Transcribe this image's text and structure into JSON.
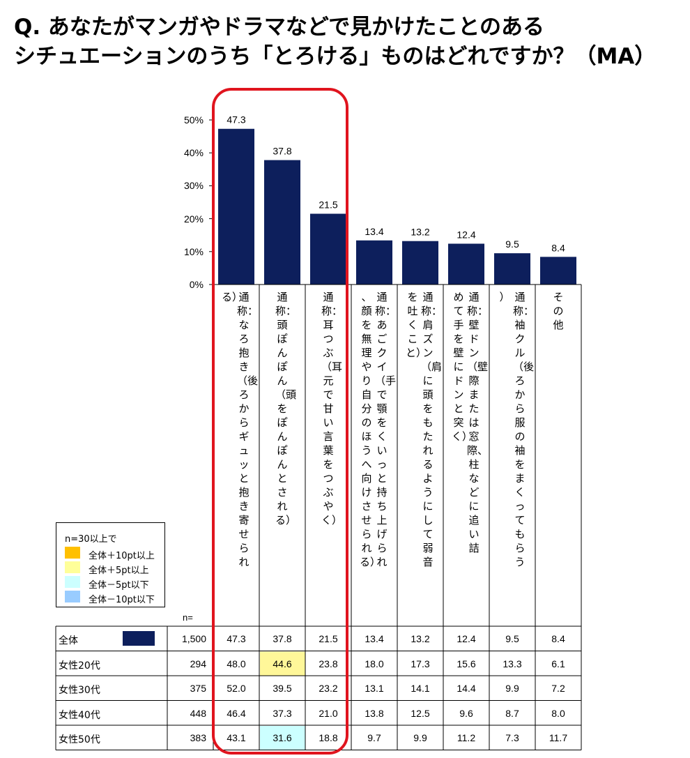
{
  "header": {
    "line1": "Q.  あなたがマンガやドラマなどで見かけたことのある",
    "line2": "シチュエーションのうち「とろける」ものはどれですか？（MA）"
  },
  "chart_data": {
    "type": "bar",
    "yticks": [
      "50%",
      "40%",
      "30%",
      "20%",
      "10%",
      "0%"
    ],
    "ylim": [
      0,
      50
    ],
    "bar_color": "#0d1f5c",
    "categories": [
      "通称：なろ抱き（後ろからギュッと抱き寄せられる）",
      "通称：頭ぽんぽん（頭をぽんぽんとされる）",
      "通称：耳つぶ（耳元で甘い言葉をつぶやく）",
      "通称：あごクイ（手で顎をくいっと持ち上げられ、顔を無理やり自分のほうへ向けさせられる）",
      "通称：肩ズン（肩に頭をもたれるようにして弱音を吐くこと）",
      "通称：壁ドン（壁際または窓際、柱などに追い詰めて手を壁にドンと突く）",
      "通称：袖クル（後ろから服の袖をまくってもらう）",
      "その他"
    ],
    "values": [
      47.3,
      37.8,
      21.5,
      13.4,
      13.2,
      12.4,
      9.5,
      8.4
    ],
    "value_labels": [
      "47.3",
      "37.8",
      "21.5",
      "13.4",
      "13.2",
      "12.4",
      "9.5",
      "8.4"
    ]
  },
  "table": {
    "n_header": "n=",
    "rows": [
      {
        "label": "全体",
        "n": "1,500",
        "values": [
          "47.3",
          "37.8",
          "21.5",
          "13.4",
          "13.2",
          "12.4",
          "9.5",
          "8.4"
        ],
        "highlights": [
          null,
          null,
          null,
          null,
          null,
          null,
          null,
          null
        ]
      },
      {
        "label": "女性20代",
        "n": "294",
        "values": [
          "48.0",
          "44.6",
          "23.8",
          "18.0",
          "17.3",
          "15.6",
          "13.3",
          "6.1"
        ],
        "highlights": [
          null,
          "#fff799",
          null,
          null,
          null,
          null,
          null,
          null
        ]
      },
      {
        "label": "女性30代",
        "n": "375",
        "values": [
          "52.0",
          "39.5",
          "23.2",
          "13.1",
          "14.1",
          "14.4",
          "9.9",
          "7.2"
        ],
        "highlights": [
          null,
          null,
          null,
          null,
          null,
          null,
          null,
          null
        ]
      },
      {
        "label": "女性40代",
        "n": "448",
        "values": [
          "46.4",
          "37.3",
          "21.0",
          "13.8",
          "12.5",
          "9.6",
          "8.7",
          "8.0"
        ],
        "highlights": [
          null,
          null,
          null,
          null,
          null,
          null,
          null,
          null
        ]
      },
      {
        "label": "女性50代",
        "n": "383",
        "values": [
          "43.1",
          "31.6",
          "18.8",
          "9.7",
          "9.9",
          "11.2",
          "7.3",
          "11.7"
        ],
        "highlights": [
          null,
          "#ccffff",
          null,
          null,
          null,
          null,
          null,
          null
        ]
      }
    ]
  },
  "legend": {
    "title": "n=30以上で",
    "items": [
      {
        "label": "全体＋10pt以上",
        "color": "#ffc000"
      },
      {
        "label": "全体＋5pt以上",
        "color": "#ffff99"
      },
      {
        "label": "全体－5pt以下",
        "color": "#ccffff"
      },
      {
        "label": "全体－10pt以下",
        "color": "#99ccff"
      }
    ]
  },
  "highlight_color": "#e0141e"
}
